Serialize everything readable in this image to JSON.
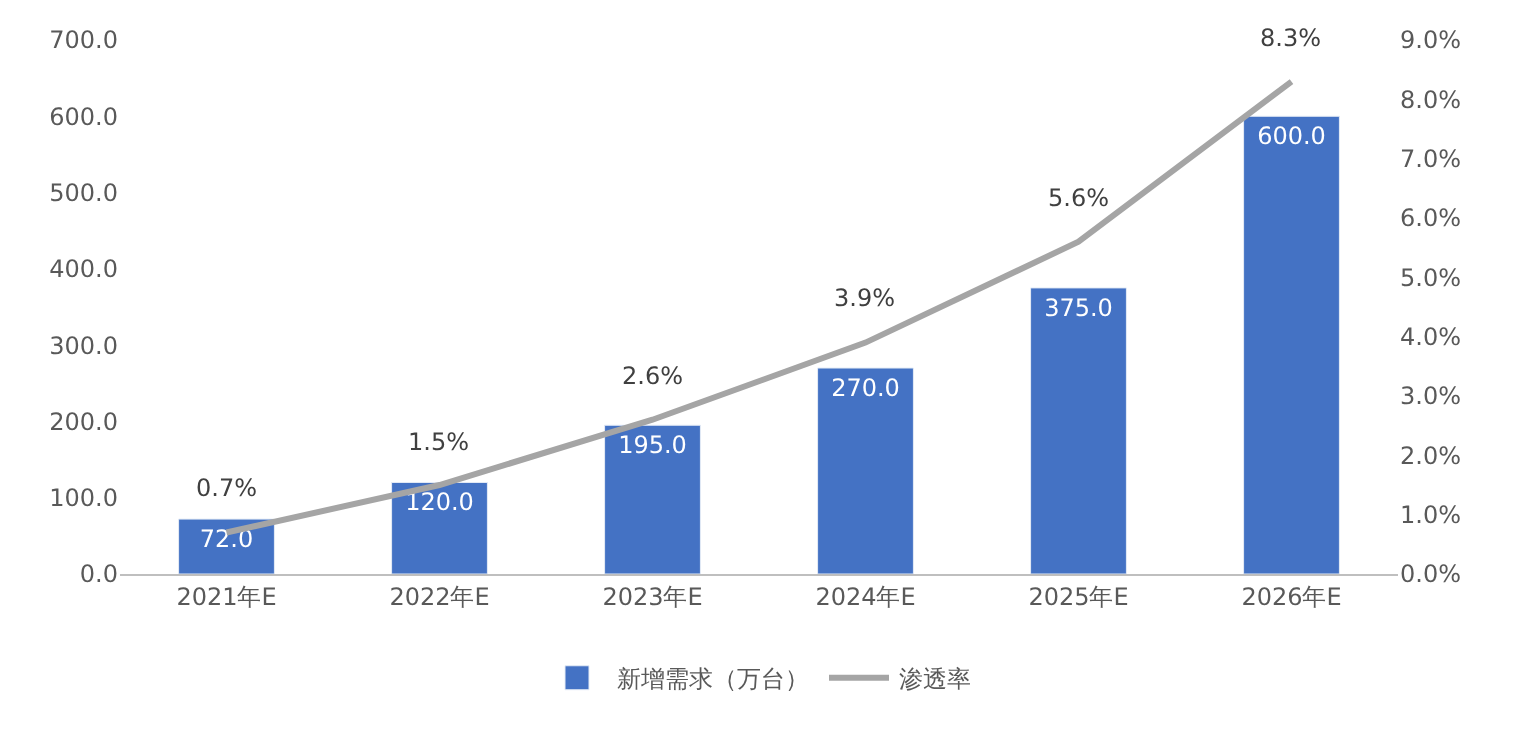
{
  "chart_data": {
    "type": "bar",
    "categories": [
      "2021年E",
      "2022年E",
      "2023年E",
      "2024年E",
      "2025年E",
      "2026年E"
    ],
    "series": [
      {
        "name": "新增需求（万台）",
        "color": "#4472c4",
        "values": [
          72,
          120,
          195,
          270,
          375,
          600
        ],
        "value_labels": [
          "72.0",
          "120.0",
          "195.0",
          "270.0",
          "375.0",
          "600.0"
        ]
      },
      {
        "name": "渗透率",
        "type": "line",
        "axis": "y2",
        "color": "#a5a5a5",
        "values": [
          0.7,
          1.5,
          2.6,
          3.9,
          5.6,
          8.3
        ],
        "value_labels": [
          "0.7%",
          "1.5%",
          "2.6%",
          "3.9%",
          "5.6%",
          "8.3%"
        ]
      }
    ],
    "ylim": [
      0,
      700
    ],
    "yticks": [
      {
        "value": 0,
        "label": "0.0"
      },
      {
        "value": 100,
        "label": "100.0"
      },
      {
        "value": 200,
        "label": "200.0"
      },
      {
        "value": 300,
        "label": "300.0"
      },
      {
        "value": 400,
        "label": "400.0"
      },
      {
        "value": 500,
        "label": "500.0"
      },
      {
        "value": 600,
        "label": "600.0"
      },
      {
        "value": 700,
        "label": "700.0"
      }
    ],
    "y2lim": [
      0,
      9
    ],
    "y2ticks": [
      {
        "value": 0,
        "label": "0.0%"
      },
      {
        "value": 1,
        "label": "1.0%"
      },
      {
        "value": 2,
        "label": "2.0%"
      },
      {
        "value": 3,
        "label": "3.0%"
      },
      {
        "value": 4,
        "label": "4.0%"
      },
      {
        "value": 5,
        "label": "5.0%"
      },
      {
        "value": 6,
        "label": "6.0%"
      },
      {
        "value": 7,
        "label": "7.0%"
      },
      {
        "value": 8,
        "label": "8.0%"
      },
      {
        "value": 9,
        "label": "9.0%"
      }
    ],
    "grid": false,
    "legend": "bottom",
    "marker": "none",
    "line_style": "solid"
  }
}
